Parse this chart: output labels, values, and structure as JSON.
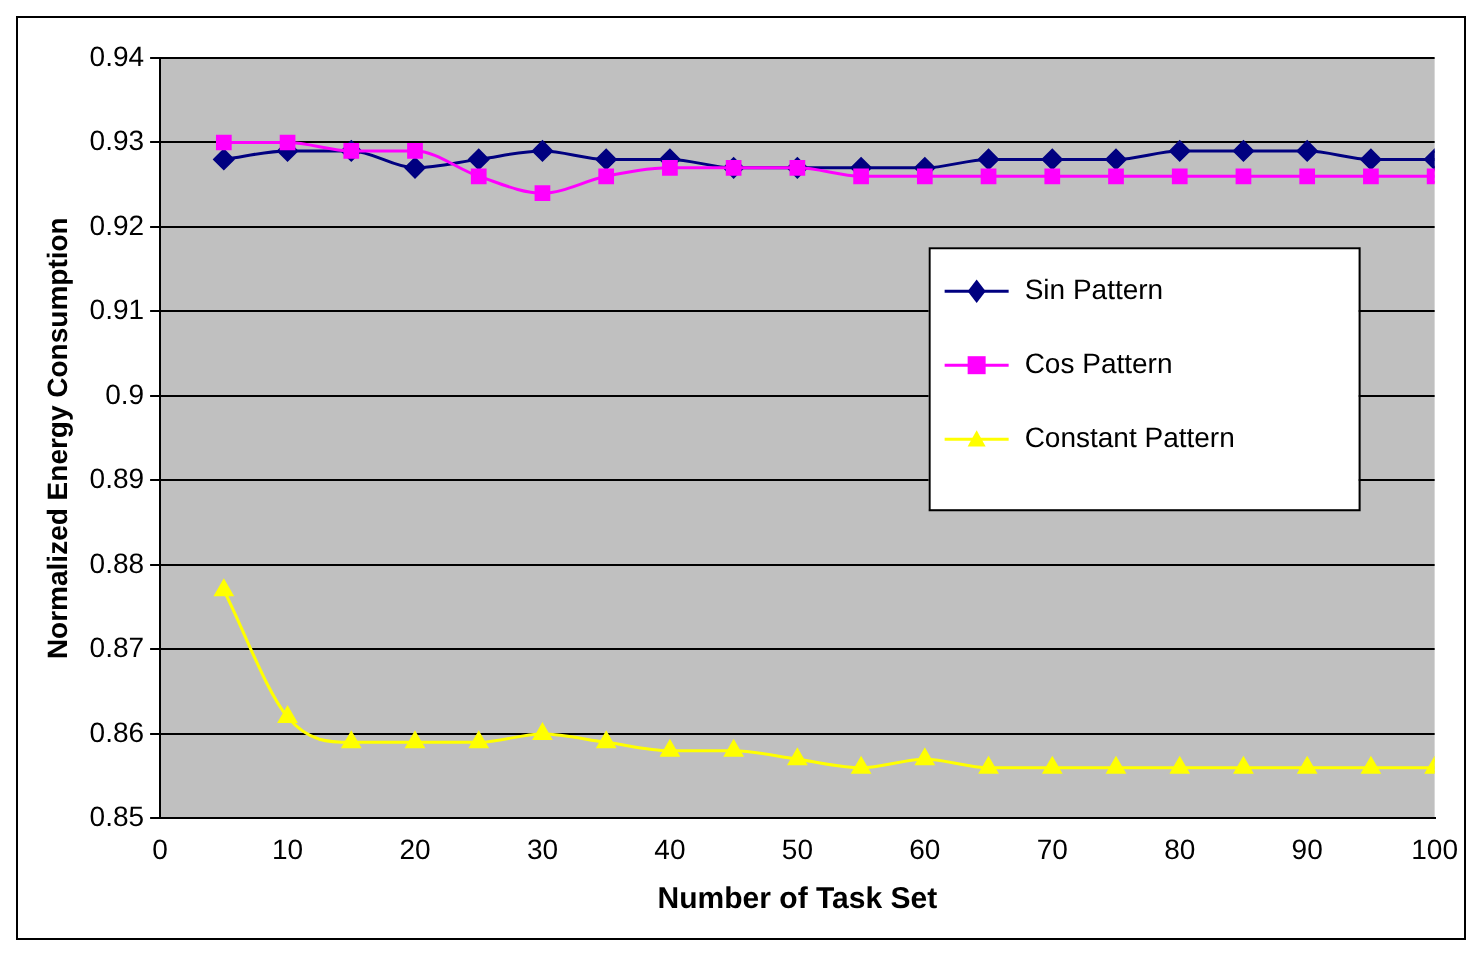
{
  "chart_data": {
    "type": "line",
    "xlabel": "Number of Task Set",
    "ylabel": "Normalized Energy Consumption",
    "x": [
      5,
      10,
      15,
      20,
      25,
      30,
      35,
      40,
      45,
      50,
      55,
      60,
      65,
      70,
      75,
      80,
      85,
      90,
      95,
      100
    ],
    "series": [
      {
        "name": "Sin Pattern",
        "color": "#000080",
        "marker": "diamond",
        "values": [
          0.928,
          0.929,
          0.929,
          0.927,
          0.928,
          0.929,
          0.928,
          0.928,
          0.927,
          0.927,
          0.927,
          0.927,
          0.928,
          0.928,
          0.928,
          0.929,
          0.929,
          0.929,
          0.928,
          0.928
        ]
      },
      {
        "name": "Cos Pattern",
        "color": "#ff00ff",
        "marker": "square",
        "values": [
          0.93,
          0.93,
          0.929,
          0.929,
          0.926,
          0.924,
          0.926,
          0.927,
          0.927,
          0.927,
          0.926,
          0.926,
          0.926,
          0.926,
          0.926,
          0.926,
          0.926,
          0.926,
          0.926,
          0.926
        ]
      },
      {
        "name": "Constant Pattern",
        "color": "#ffff00",
        "marker": "triangle",
        "values": [
          0.877,
          0.862,
          0.859,
          0.859,
          0.859,
          0.86,
          0.859,
          0.858,
          0.858,
          0.857,
          0.856,
          0.857,
          0.856,
          0.856,
          0.856,
          0.856,
          0.856,
          0.856,
          0.856,
          0.856
        ]
      }
    ],
    "xlim": [
      0,
      100
    ],
    "xticks": [
      0,
      10,
      20,
      30,
      40,
      50,
      60,
      70,
      80,
      90,
      100
    ],
    "ylim": [
      0.85,
      0.94
    ],
    "yticks": [
      0.85,
      0.86,
      0.87,
      0.88,
      0.89,
      0.9,
      0.91,
      0.92,
      0.93,
      0.94
    ],
    "grid": "y",
    "legend": "right"
  }
}
